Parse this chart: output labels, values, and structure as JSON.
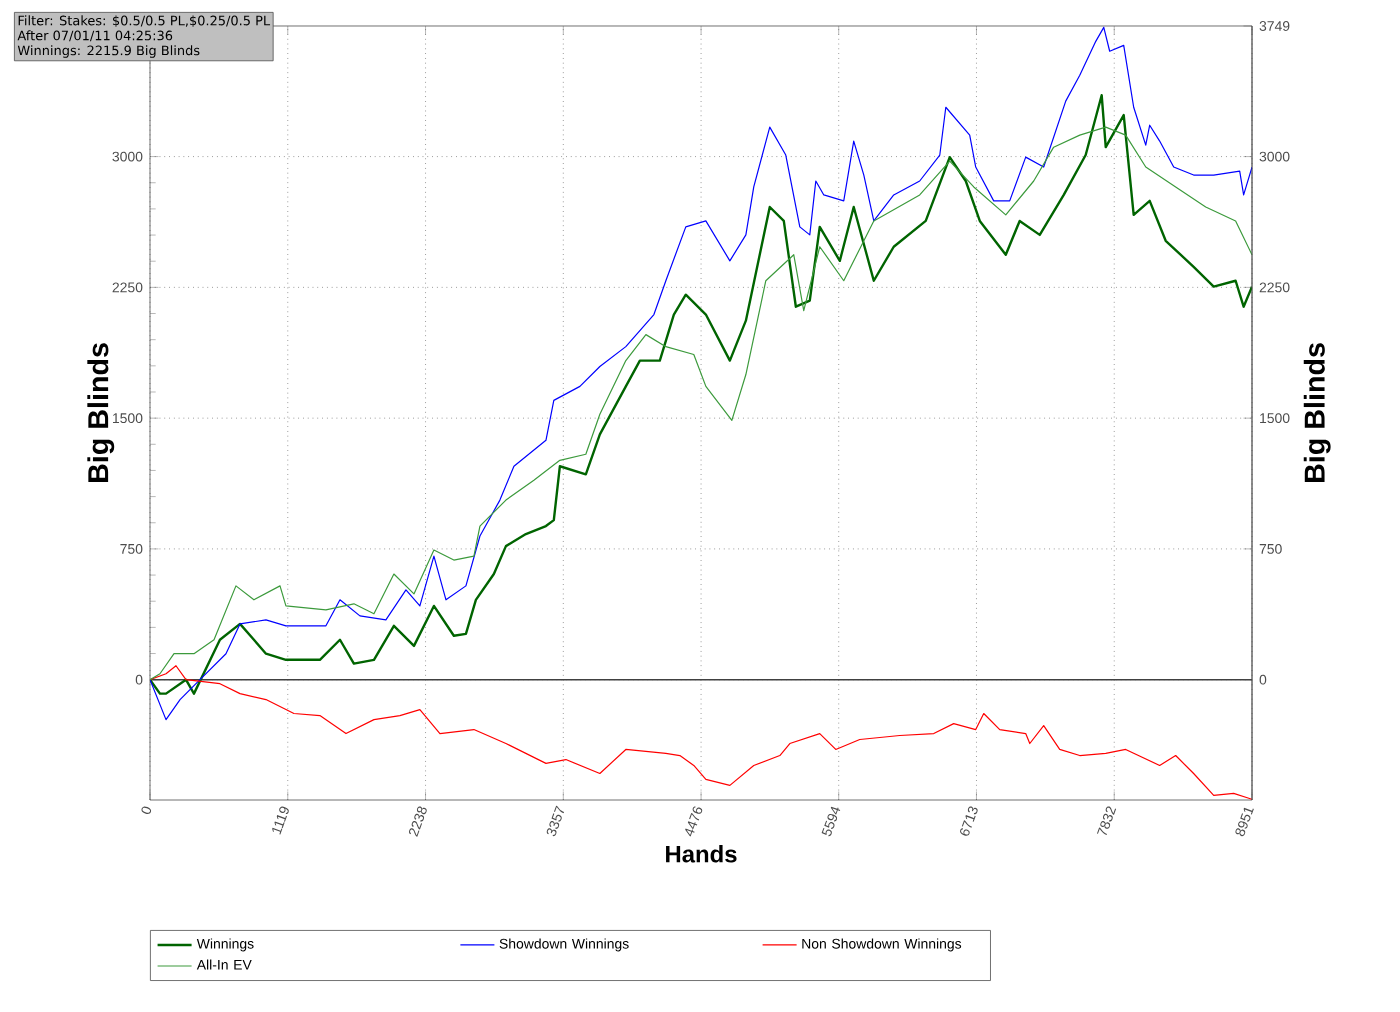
{
  "chart_data": {
    "type": "line",
    "xlabel": "Hands",
    "ylabel": "Big Blinds",
    "y2label": "Big Blinds",
    "annotations": [
      "Filter: Stakes: $0.5/0.5 PL,$0.25/0.5 PL",
      "After 07/01/11 04:25:36",
      "Winnings: 2215.9 Big Blinds"
    ],
    "xlim": [
      0,
      8951
    ],
    "xticks": [
      0,
      1119,
      2238,
      3357,
      4476,
      5594,
      6713,
      7832,
      8951
    ],
    "ylim": [
      -690,
      3749
    ],
    "yticks": [
      0,
      750,
      1500,
      2250,
      3000
    ],
    "y2lim": [
      -690,
      3749
    ],
    "y2ticks": [
      0,
      750,
      1500,
      2250,
      3000,
      3749
    ],
    "grid": true,
    "legend": "bottom",
    "ref_lines": [
      {
        "axis": "y",
        "value": 0,
        "color": "#404040"
      }
    ],
    "series": [
      {
        "name": "Winnings",
        "color": "#006400",
        "x": [
          0,
          81,
          130,
          292,
          357,
          568,
          731,
          844,
          942,
          1104,
          1380,
          1543,
          1656,
          1819,
          1981,
          2144,
          2306,
          2468,
          2566,
          2647,
          2793,
          2891,
          3053,
          3216,
          3280,
          3329,
          3540,
          3654,
          3865,
          3979,
          4141,
          4255,
          4352,
          4515,
          4710,
          4840,
          5034,
          5148,
          5246,
          5359,
          5440,
          5603,
          5716,
          5879,
          6041,
          6301,
          6496,
          6626,
          6740,
          6951,
          7064,
          7227,
          7422,
          7600,
          7730,
          7763,
          7909,
          7990,
          8120,
          8250,
          8477,
          8640,
          8818,
          8883,
          8951
        ],
        "values": [
          0,
          -80,
          -80,
          0,
          -80,
          229,
          320,
          229,
          149,
          114,
          114,
          229,
          92,
          114,
          309,
          194,
          423,
          252,
          263,
          458,
          606,
          766,
          835,
          881,
          915,
          1224,
          1178,
          1407,
          1682,
          1830,
          1830,
          2094,
          2208,
          2094,
          1830,
          2059,
          2711,
          2631,
          2139,
          2174,
          2597,
          2402,
          2711,
          2288,
          2483,
          2631,
          2997,
          2860,
          2631,
          2437,
          2631,
          2551,
          2780,
          3009,
          3352,
          3054,
          3238,
          2666,
          2746,
          2517,
          2368,
          2254,
          2288,
          2139,
          2254
        ]
      },
      {
        "name": "Showdown Winnings",
        "color": "#0000ff",
        "x": [
          0,
          130,
          244,
          406,
          617,
          731,
          942,
          1104,
          1429,
          1543,
          1705,
          1916,
          2079,
          2192,
          2306,
          2404,
          2566,
          2680,
          2842,
          2956,
          3216,
          3280,
          3492,
          3654,
          3865,
          4093,
          4190,
          4352,
          4515,
          4710,
          4840,
          4904,
          5034,
          5164,
          5278,
          5359,
          5408,
          5473,
          5635,
          5716,
          5798,
          5879,
          6041,
          6252,
          6415,
          6464,
          6658,
          6707,
          6853,
          6983,
          7113,
          7259,
          7438,
          7552,
          7682,
          7747,
          7795,
          7909,
          7990,
          8088,
          8120,
          8201,
          8315,
          8477,
          8640,
          8851,
          8883,
          8951
        ],
        "values": [
          0,
          -229,
          -114,
          0,
          149,
          320,
          343,
          309,
          309,
          458,
          366,
          343,
          515,
          423,
          709,
          458,
          538,
          824,
          1030,
          1224,
          1373,
          1602,
          1682,
          1796,
          1910,
          2094,
          2288,
          2597,
          2631,
          2402,
          2551,
          2826,
          3169,
          3009,
          2597,
          2551,
          2860,
          2780,
          2746,
          3089,
          2894,
          2631,
          2780,
          2860,
          3009,
          3283,
          3123,
          2940,
          2746,
          2746,
          2997,
          2940,
          3318,
          3466,
          3661,
          3741,
          3604,
          3638,
          3283,
          3066,
          3180,
          3089,
          2940,
          2894,
          2894,
          2917,
          2780,
          2940
        ]
      },
      {
        "name": "Non Showdown Winnings",
        "color": "#ff0000",
        "x": [
          0,
          130,
          211,
          292,
          568,
          731,
          942,
          1169,
          1380,
          1592,
          1819,
          2030,
          2192,
          2355,
          2631,
          2891,
          3216,
          3378,
          3654,
          3865,
          4190,
          4304,
          4417,
          4515,
          4710,
          4904,
          5116,
          5197,
          5440,
          5570,
          5765,
          6090,
          6366,
          6528,
          6707,
          6772,
          6902,
          7113,
          7146,
          7259,
          7389,
          7552,
          7763,
          7925,
          8201,
          8331,
          8477,
          8640,
          8802,
          8951
        ],
        "values": [
          0,
          34,
          80,
          0,
          -23,
          -80,
          -114,
          -194,
          -206,
          -309,
          -229,
          -206,
          -172,
          -309,
          -286,
          -366,
          -480,
          -458,
          -538,
          -400,
          -423,
          -435,
          -492,
          -572,
          -606,
          -492,
          -435,
          -366,
          -309,
          -400,
          -343,
          -320,
          -309,
          -252,
          -286,
          -194,
          -286,
          -309,
          -366,
          -263,
          -400,
          -435,
          -423,
          -400,
          -492,
          -435,
          -538,
          -664,
          -652,
          -686
        ]
      },
      {
        "name": "All-In EV",
        "color": "#3c9a3c",
        "x": [
          0,
          81,
          195,
          357,
          520,
          698,
          844,
          1056,
          1104,
          1429,
          1656,
          1819,
          1981,
          2144,
          2306,
          2468,
          2631,
          2680,
          2891,
          3118,
          3329,
          3540,
          3654,
          3865,
          4028,
          4190,
          4417,
          4515,
          4726,
          4840,
          5002,
          5229,
          5310,
          5440,
          5635,
          5879,
          6252,
          6496,
          6691,
          6951,
          7178,
          7340,
          7552,
          7763,
          7925,
          8088,
          8331,
          8575,
          8818,
          8951
        ],
        "values": [
          0,
          34,
          149,
          149,
          229,
          538,
          458,
          538,
          423,
          400,
          435,
          378,
          606,
          492,
          744,
          686,
          709,
          881,
          1030,
          1144,
          1258,
          1293,
          1522,
          1830,
          1979,
          1910,
          1865,
          1682,
          1487,
          1750,
          2288,
          2437,
          2116,
          2483,
          2288,
          2631,
          2780,
          2974,
          2826,
          2666,
          2860,
          3054,
          3123,
          3169,
          3123,
          2940,
          2826,
          2711,
          2631,
          2437
        ]
      }
    ]
  }
}
